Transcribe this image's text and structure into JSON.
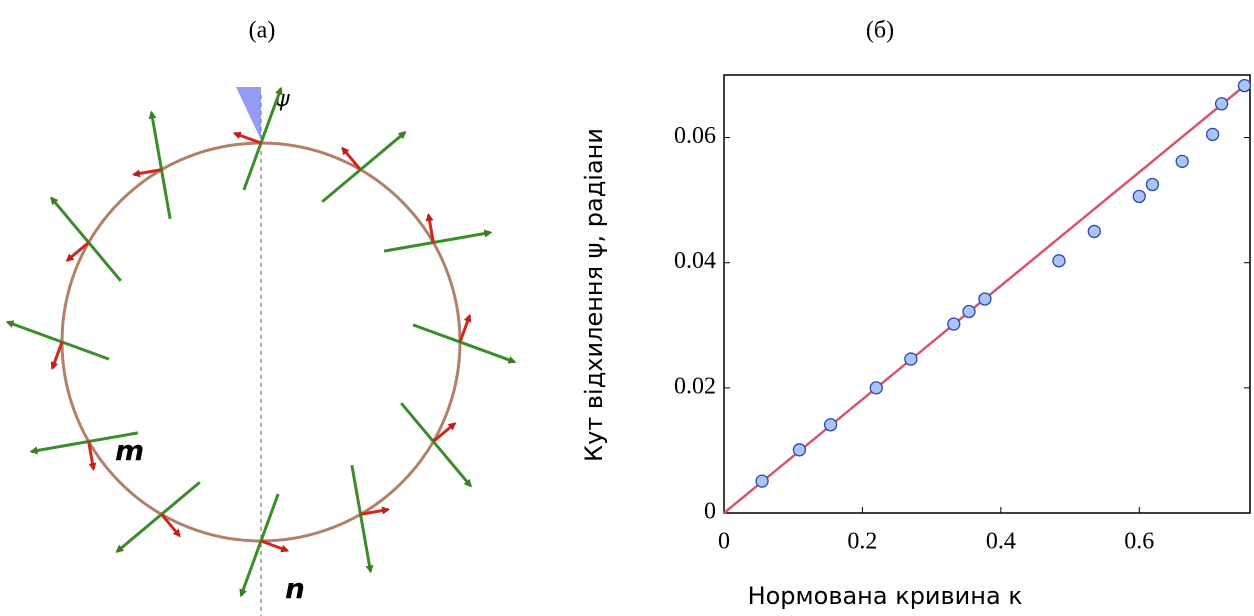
{
  "panel_a": {
    "title": "(a)",
    "psi_label": "ψ",
    "m_label": "m",
    "n_label": "n"
  },
  "chart_data": {
    "type": "scatter",
    "title": "(б)",
    "x_label": "Нормована кривина  κ",
    "y_label": "Кут відхилення ψ,  радіани",
    "xlim": [
      0,
      0.76
    ],
    "ylim": [
      0,
      0.07
    ],
    "xticks": [
      0,
      0.2,
      0.4,
      0.6
    ],
    "yticks": [
      0,
      0.02,
      0.04,
      0.06
    ],
    "series": [
      {
        "kind": "line",
        "color": "#d9546a",
        "x": [
          0,
          0.76
        ],
        "values": [
          0,
          0.069
        ]
      },
      {
        "kind": "scatter",
        "color": "#a9c4f5",
        "edgecolor": "#2a45b5",
        "x": [
          0.055,
          0.109,
          0.154,
          0.22,
          0.27,
          0.332,
          0.354,
          0.377,
          0.484,
          0.535,
          0.6,
          0.619,
          0.662,
          0.706,
          0.719,
          0.752
        ],
        "values": [
          0.0051,
          0.0101,
          0.0141,
          0.02,
          0.0246,
          0.0302,
          0.0322,
          0.0342,
          0.0403,
          0.045,
          0.0506,
          0.0525,
          0.0562,
          0.0605,
          0.0654,
          0.0683
        ]
      }
    ]
  }
}
